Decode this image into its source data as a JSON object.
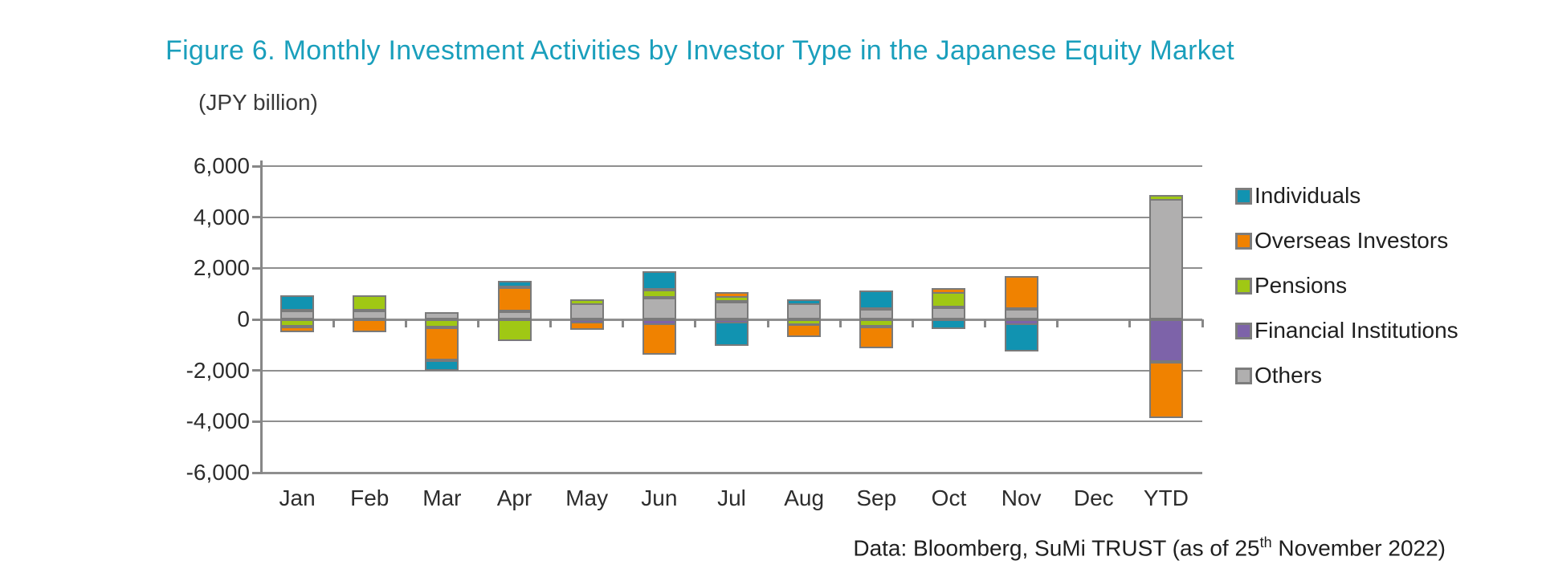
{
  "title": "Figure 6. Monthly Investment Activities by Investor Type in the Japanese Equity Market",
  "title_color": "#1a9fbc",
  "unit_label": "(JPY billion)",
  "footer": {
    "prefix": "Data: Bloomberg, SuMi TRUST (as of 25",
    "superscript": "th",
    "suffix": " November 2022)"
  },
  "colors": {
    "individuals": "#1193b1",
    "overseas_investors": "#f08200",
    "pensions": "#a0c814",
    "financial_institutions": "#7d63a9",
    "others": "#b0afaf",
    "segment_border": "#7a7a7a",
    "gridline": "#8f8f8f",
    "axis_text": "#2d2d2d"
  },
  "chart_data": {
    "type": "bar",
    "stacked": true,
    "title": "Figure 6. Monthly Investment Activities by Investor Type in the Japanese Equity Market",
    "ylabel": "(JPY billion)",
    "ylim": [
      -6000,
      6000
    ],
    "ytick_step": 2000,
    "ytick_labels": [
      "6,000",
      "4,000",
      "2,000",
      "0",
      "-2,000",
      "-4,000",
      "-6,000"
    ],
    "grid": "horizontal",
    "legend_position": "right",
    "categories": [
      "Jan",
      "Feb",
      "Mar",
      "Apr",
      "May",
      "Jun",
      "Jul",
      "Aug",
      "Sep",
      "Oct",
      "Nov",
      "Dec",
      "YTD"
    ],
    "stack_order_from_zero": [
      "Others",
      "Financial Institutions",
      "Pensions",
      "Overseas Investors",
      "Individuals"
    ],
    "series": [
      {
        "name": "Individuals",
        "color": "#1193b1",
        "values": [
          600,
          0,
          -400,
          250,
          0,
          700,
          -950,
          170,
          720,
          -380,
          -1100,
          0,
          0
        ]
      },
      {
        "name": "Overseas Investors",
        "color": "#f08200",
        "values": [
          -220,
          -500,
          -1300,
          950,
          -320,
          -1200,
          110,
          -520,
          -850,
          130,
          1300,
          0,
          -2200
        ]
      },
      {
        "name": "Pensions",
        "color": "#a0c814",
        "values": [
          -270,
          610,
          -300,
          -850,
          160,
          330,
          270,
          -180,
          -280,
          640,
          0,
          0,
          180
        ]
      },
      {
        "name": "Financial Institutions",
        "color": "#7d63a9",
        "values": [
          0,
          0,
          0,
          0,
          -100,
          -170,
          -90,
          0,
          0,
          0,
          -160,
          0,
          -1650
        ]
      },
      {
        "name": "Others",
        "color": "#b0afaf",
        "values": [
          330,
          330,
          290,
          310,
          620,
          840,
          680,
          620,
          410,
          460,
          400,
          0,
          4700
        ]
      }
    ]
  }
}
